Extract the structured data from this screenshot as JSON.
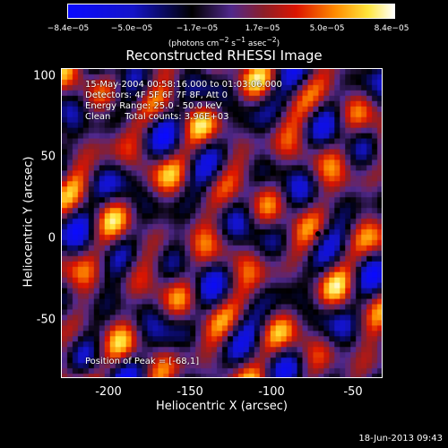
{
  "colorbar": {
    "ticks": [
      "−8.4e−05",
      "−5.0e−05",
      "−1.7e−05",
      "1.7e−05",
      "5.0e−05",
      "8.4e−05"
    ],
    "units_html": "(photons cm<sup>−2</sup> s<sup>−1</sup> asec<sup>−2</sup>)"
  },
  "chart_data": {
    "type": "heatmap",
    "title": "Reconstructed RHESSI Image",
    "xlabel": "Heliocentric X (arcsec)",
    "ylabel": "Heliocentric Y (arcsec)",
    "xlim": [
      -226,
      -28
    ],
    "ylim": [
      -90,
      104
    ],
    "xticks": [
      -200,
      -150,
      -100,
      -50
    ],
    "yticks": [
      100,
      50,
      0,
      -50
    ],
    "color_range": [
      -8.4e-05,
      8.4e-05
    ],
    "colormap": "blue-black-red-yellow-white",
    "peak_position": [
      -68,
      1
    ],
    "annotations": {
      "line1": "15-May-2004 00:58:16.000 to 01:03:06.000",
      "line2": "Detectors: 4F 5F 6F 7F 8F, Att 0",
      "line3": "Energy Range: 25.0 - 50.0 keV",
      "line4": "Clean     Total counts: 3.96E+03",
      "peak_label": "Position of Peak = [-68,1]"
    }
  },
  "timestamp": "18-Jun-2013 09:43"
}
